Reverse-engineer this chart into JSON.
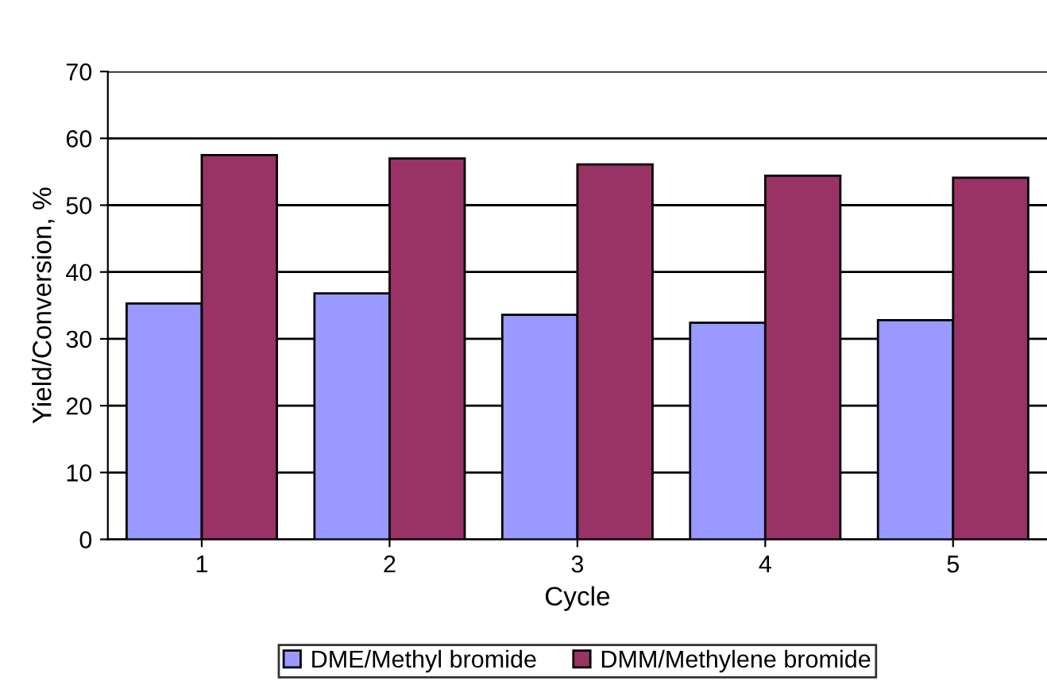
{
  "chart_data": {
    "type": "bar",
    "xlabel": "Cycle",
    "ylabel": "Yield/Conversion, %",
    "categories": [
      "1",
      "2",
      "3",
      "4",
      "5"
    ],
    "series": [
      {
        "name": "DME/Methyl bromide",
        "color": "#9999ff",
        "values": [
          35.3,
          36.8,
          33.6,
          32.4,
          32.8
        ]
      },
      {
        "name": "DMM/Methylene bromide",
        "color": "#993366",
        "values": [
          57.5,
          57.0,
          56.1,
          54.4,
          54.1
        ]
      }
    ],
    "ylim": [
      0,
      70
    ],
    "yticks": [
      0,
      10,
      20,
      30,
      40,
      50,
      60,
      70
    ],
    "grid": "y",
    "legend": "bottom"
  }
}
